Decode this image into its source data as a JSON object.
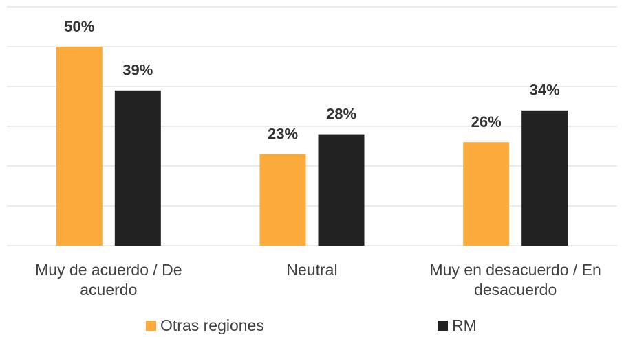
{
  "chart_data": {
    "type": "bar",
    "categories": [
      "Muy de acuerdo / De acuerdo",
      "Neutral",
      "Muy en desacuerdo / En desacuerdo"
    ],
    "series": [
      {
        "name": "Otras regiones",
        "color": "#fbaa3c",
        "values": [
          50,
          23,
          26
        ],
        "value_labels": [
          "50%",
          "23%",
          "26%"
        ]
      },
      {
        "name": "RM",
        "color": "#222222",
        "values": [
          39,
          28,
          34
        ],
        "value_labels": [
          "39%",
          "28%",
          "34%"
        ]
      }
    ],
    "ylim": [
      0,
      60
    ],
    "yticks": [
      0,
      10,
      20,
      30,
      40,
      50,
      60
    ],
    "grid": true
  }
}
